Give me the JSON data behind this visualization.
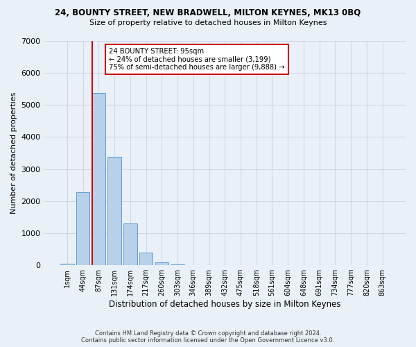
{
  "title": "24, BOUNTY STREET, NEW BRADWELL, MILTON KEYNES, MK13 0BQ",
  "subtitle": "Size of property relative to detached houses in Milton Keynes",
  "xlabel": "Distribution of detached houses by size in Milton Keynes",
  "ylabel": "Number of detached properties",
  "bar_color": "#b8d0ea",
  "bar_edge_color": "#5a9fd4",
  "bar_categories": [
    "1sqm",
    "44sqm",
    "87sqm",
    "131sqm",
    "174sqm",
    "217sqm",
    "260sqm",
    "303sqm",
    "346sqm",
    "389sqm",
    "432sqm",
    "475sqm",
    "518sqm",
    "561sqm",
    "604sqm",
    "648sqm",
    "691sqm",
    "734sqm",
    "777sqm",
    "820sqm",
    "863sqm"
  ],
  "bar_values": [
    45,
    2280,
    5380,
    3380,
    1300,
    390,
    80,
    30,
    0,
    0,
    0,
    0,
    0,
    0,
    0,
    0,
    0,
    0,
    0,
    0,
    0
  ],
  "ylim": [
    0,
    7000
  ],
  "yticks": [
    0,
    1000,
    2000,
    3000,
    4000,
    5000,
    6000,
    7000
  ],
  "annotation_box_text": "24 BOUNTY STREET: 95sqm\n← 24% of detached houses are smaller (3,199)\n75% of semi-detached houses are larger (9,888) →",
  "vline_x_index": 2,
  "vline_color": "#cc0000",
  "annotation_box_color": "#ffffff",
  "annotation_box_edge_color": "#cc0000",
  "grid_color": "#d0d8e8",
  "background_color": "#eaf0f8",
  "footer_line1": "Contains HM Land Registry data © Crown copyright and database right 2024.",
  "footer_line2": "Contains public sector information licensed under the Open Government Licence v3.0."
}
